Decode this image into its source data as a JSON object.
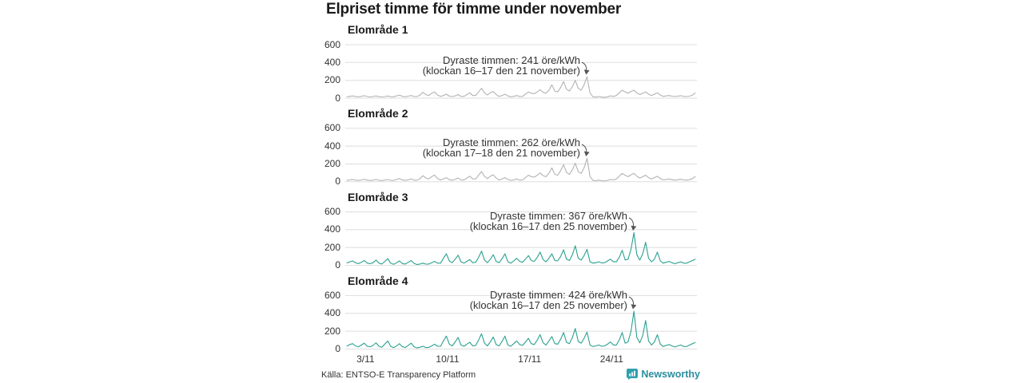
{
  "title": "Elpriset timme för timme under november",
  "source": "Källa: ENTSO-E Transparency Platform",
  "brand": {
    "name": "Newsworthy",
    "color": "#2b8e9d",
    "icon": "bar-chart-bubble-icon",
    "icon_color": "#31a0ad"
  },
  "colors": {
    "grid": "#dddddd",
    "text": "#333333",
    "title_text": "#1a1a1a",
    "gray_line": "#b3b3b5",
    "teal_line": "#2aa18f",
    "arrow": "#555555",
    "background": "#ffffff"
  },
  "y_ticks": [
    600,
    400,
    200,
    0
  ],
  "x_ticks": [
    {
      "label": "3/11",
      "day": 3
    },
    {
      "label": "10/11",
      "day": 10
    },
    {
      "label": "17/11",
      "day": 17
    },
    {
      "label": "24/11",
      "day": 24
    }
  ],
  "chart_data": [
    {
      "type": "line",
      "title": "Elområde 1",
      "color": "#b3b3b5",
      "ylim": [
        0,
        600
      ],
      "x_range": "1 november – 30 november, hourly (4 samples/day shown)",
      "annotation": {
        "line1": "Dyraste timmen: 241 öre/kWh",
        "line2": "(klockan 16–17 den 21 november)",
        "peak_value": 241,
        "peak_time": "16–17 den 21 november"
      },
      "values": [
        15,
        20,
        25,
        18,
        15,
        20,
        28,
        18,
        14,
        18,
        25,
        16,
        13,
        18,
        24,
        16,
        15,
        25,
        35,
        20,
        15,
        22,
        30,
        18,
        18,
        35,
        65,
        40,
        30,
        55,
        70,
        35,
        20,
        30,
        45,
        22,
        18,
        25,
        40,
        20,
        20,
        40,
        60,
        30,
        30,
        70,
        110,
        60,
        35,
        60,
        75,
        40,
        20,
        30,
        45,
        25,
        15,
        20,
        30,
        18,
        20,
        45,
        70,
        55,
        50,
        70,
        95,
        65,
        55,
        90,
        150,
        80,
        70,
        120,
        185,
        100,
        80,
        130,
        200,
        110,
        90,
        150,
        241,
        60,
        15,
        12,
        18,
        12,
        10,
        15,
        25,
        20,
        30,
        60,
        90,
        70,
        55,
        75,
        90,
        60,
        40,
        55,
        70,
        45,
        30,
        45,
        60,
        35,
        20,
        25,
        30,
        22,
        18,
        22,
        28,
        20,
        18,
        22,
        35,
        60
      ]
    },
    {
      "type": "line",
      "title": "Elområde 2",
      "color": "#b3b3b5",
      "ylim": [
        0,
        600
      ],
      "x_range": "1 november – 30 november, hourly (4 samples/day shown)",
      "annotation": {
        "line1": "Dyraste timmen: 262 öre/kWh",
        "line2": "(klockan 17–18 den 21 november)",
        "peak_value": 262,
        "peak_time": "17–18 den 21 november"
      },
      "values": [
        15,
        20,
        26,
        18,
        15,
        21,
        29,
        18,
        14,
        18,
        26,
        16,
        13,
        19,
        25,
        16,
        15,
        26,
        36,
        20,
        15,
        23,
        31,
        18,
        18,
        36,
        68,
        42,
        32,
        58,
        74,
        36,
        20,
        31,
        47,
        22,
        18,
        26,
        42,
        20,
        20,
        42,
        63,
        31,
        32,
        74,
        115,
        62,
        36,
        62,
        78,
        42,
        20,
        31,
        47,
        26,
        15,
        21,
        31,
        18,
        21,
        47,
        73,
        57,
        52,
        73,
        99,
        68,
        57,
        94,
        156,
        83,
        73,
        125,
        192,
        104,
        83,
        135,
        208,
        114,
        94,
        156,
        262,
        62,
        15,
        12,
        19,
        12,
        10,
        16,
        26,
        21,
        31,
        62,
        94,
        73,
        57,
        78,
        94,
        62,
        42,
        57,
        73,
        47,
        31,
        47,
        62,
        36,
        21,
        26,
        31,
        23,
        19,
        23,
        29,
        21,
        19,
        23,
        36,
        62
      ]
    },
    {
      "type": "line",
      "title": "Elområde 3",
      "color": "#2aa18f",
      "ylim": [
        0,
        600
      ],
      "x_range": "1 november – 30 november, hourly (4 samples/day shown)",
      "annotation": {
        "line1": "Dyraste timmen: 367 öre/kWh",
        "line2": "(klockan 16–17 den 25 november)",
        "peak_value": 367,
        "peak_time": "16–17 den 25 november"
      },
      "values": [
        25,
        40,
        50,
        30,
        20,
        35,
        55,
        25,
        20,
        30,
        60,
        25,
        15,
        45,
        75,
        25,
        12,
        30,
        50,
        20,
        15,
        35,
        55,
        22,
        10,
        15,
        25,
        14,
        15,
        30,
        45,
        25,
        25,
        80,
        130,
        50,
        30,
        70,
        115,
        40,
        25,
        45,
        65,
        30,
        35,
        90,
        160,
        60,
        30,
        70,
        120,
        45,
        30,
        75,
        130,
        40,
        25,
        50,
        80,
        45,
        35,
        70,
        110,
        55,
        45,
        90,
        150,
        65,
        40,
        80,
        130,
        55,
        50,
        100,
        175,
        70,
        55,
        120,
        220,
        80,
        60,
        110,
        180,
        40,
        25,
        30,
        40,
        28,
        30,
        50,
        70,
        40,
        40,
        90,
        170,
        60,
        70,
        180,
        367,
        120,
        60,
        130,
        260,
        80,
        40,
        70,
        150,
        50,
        25,
        35,
        45,
        30,
        20,
        30,
        40,
        25,
        25,
        40,
        55,
        70
      ]
    },
    {
      "type": "line",
      "title": "Elområde 4",
      "color": "#2aa18f",
      "ylim": [
        0,
        600
      ],
      "x_range": "1 november – 30 november, hourly (4 samples/day shown)",
      "annotation": {
        "line1": "Dyraste timmen: 424 öre/kWh",
        "line2": "(klockan 16–17 den 25 november)",
        "peak_value": 424,
        "peak_time": "16–17 den 25 november"
      },
      "values": [
        30,
        50,
        60,
        35,
        25,
        45,
        65,
        30,
        25,
        40,
        70,
        30,
        20,
        55,
        90,
        30,
        15,
        35,
        60,
        25,
        18,
        40,
        65,
        25,
        12,
        20,
        30,
        16,
        18,
        35,
        55,
        30,
        30,
        90,
        145,
        55,
        35,
        80,
        130,
        45,
        30,
        55,
        75,
        35,
        40,
        100,
        170,
        65,
        35,
        80,
        135,
        50,
        35,
        85,
        145,
        45,
        30,
        60,
        90,
        50,
        40,
        80,
        120,
        60,
        50,
        100,
        160,
        70,
        45,
        90,
        140,
        60,
        55,
        110,
        185,
        75,
        60,
        130,
        230,
        85,
        65,
        120,
        190,
        45,
        28,
        35,
        45,
        30,
        35,
        55,
        80,
        45,
        45,
        100,
        185,
        65,
        80,
        200,
        424,
        130,
        70,
        150,
        320,
        90,
        45,
        80,
        160,
        55,
        28,
        40,
        50,
        35,
        22,
        35,
        45,
        28,
        28,
        45,
        60,
        75
      ]
    }
  ]
}
